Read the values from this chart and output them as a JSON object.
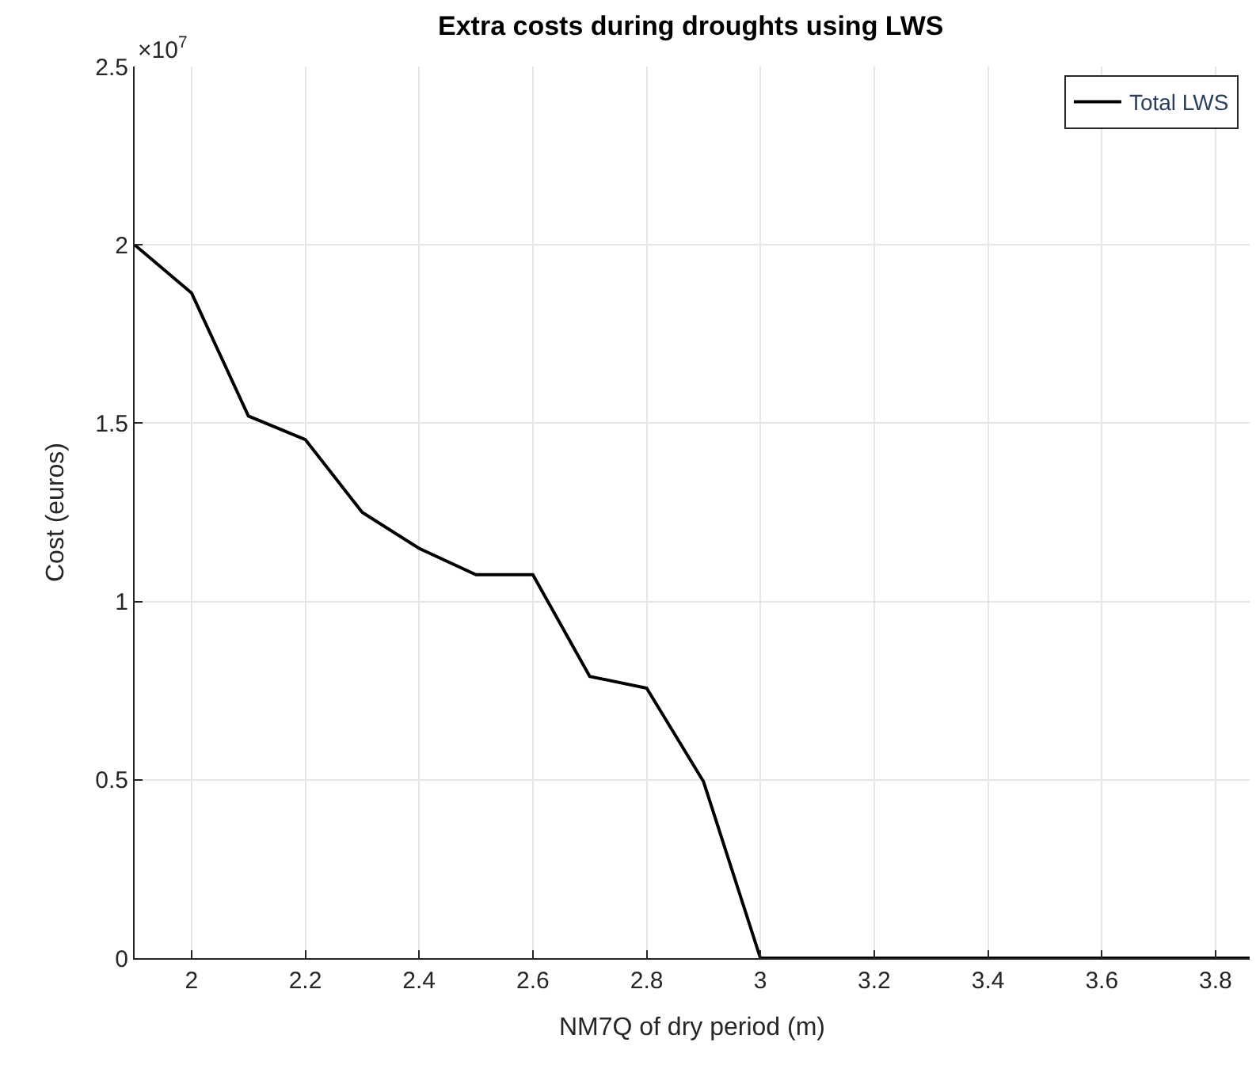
{
  "chart_data": {
    "type": "line",
    "title": "Extra costs during droughts using LWS",
    "xlabel": "NM7Q of dry period (m)",
    "ylabel": "Cost (euros)",
    "annotations": [
      "×10$^{7}$"
    ],
    "x": [
      1.9,
      2.0,
      2.1,
      2.2,
      2.3,
      2.4,
      2.5,
      2.6,
      2.7,
      2.8,
      2.9,
      3.0,
      3.1,
      3.2,
      3.3,
      3.4,
      3.5,
      3.6,
      3.7,
      3.8,
      3.86
    ],
    "series": [
      {
        "name": "Total LWS",
        "color": "#000000",
        "values": [
          2.0,
          1.865,
          1.52,
          1.454,
          1.25,
          1.149,
          1.075,
          1.075,
          0.79,
          0.757,
          0.495,
          0,
          0,
          0,
          0,
          0,
          0,
          0,
          0,
          0,
          0
        ]
      }
    ],
    "xlim": [
      1.9,
      3.86
    ],
    "ylim": [
      0,
      2.5
    ],
    "xticks": [
      2,
      2.2,
      2.4,
      2.6,
      2.8,
      3,
      3.2,
      3.4,
      3.6,
      3.8
    ],
    "yticks": [
      0,
      0.5,
      1,
      1.5,
      2,
      2.5
    ],
    "grid": true,
    "legend": "top right",
    "marker": "none",
    "line_style": "solid"
  }
}
